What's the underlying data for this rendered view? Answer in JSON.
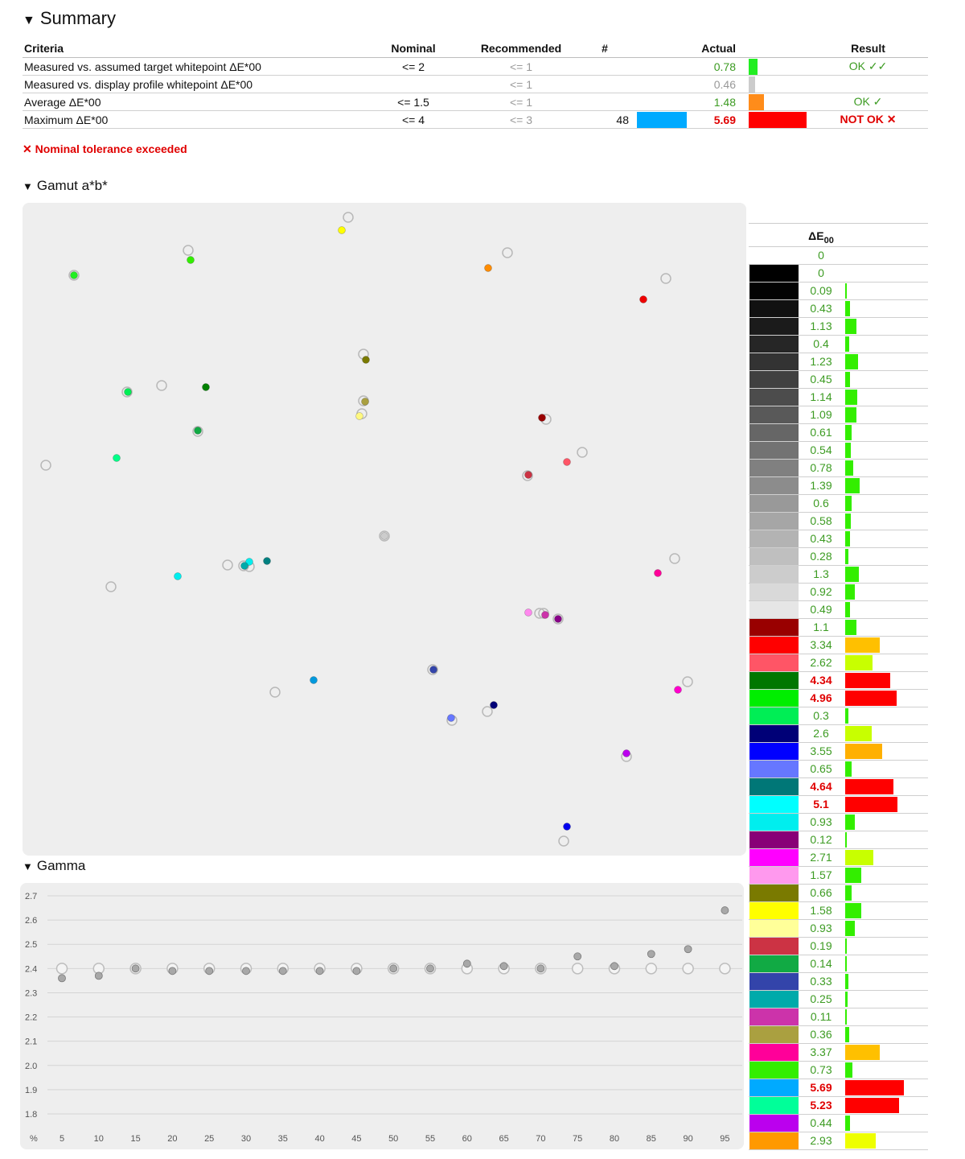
{
  "summary": {
    "title": "Summary",
    "headers": {
      "criteria": "Criteria",
      "nominal": "Nominal",
      "recommended": "Recommended",
      "count": "#",
      "actual": "Actual",
      "result": "Result"
    },
    "rows": [
      {
        "criteria": "Measured vs. assumed target whitepoint ΔE*00",
        "nominal": "<= 2",
        "recommended": "<= 1",
        "count": "",
        "actual": "0.78",
        "actual_color": "#3c9b22",
        "bar_color": "#22ee22",
        "bar_fraction": 0.15,
        "result": "OK ✓✓",
        "result_color": "#3c9b22",
        "swatch": ""
      },
      {
        "criteria": "Measured vs. display profile whitepoint ΔE*00",
        "nominal": "",
        "recommended": "<= 1",
        "count": "",
        "actual": "0.46",
        "actual_color": "#999999",
        "bar_color": "#cccccc",
        "bar_fraction": 0.11,
        "result": "",
        "result_color": "#3c9b22",
        "swatch": ""
      },
      {
        "criteria": "Average ΔE*00",
        "nominal": "<= 1.5",
        "recommended": "<= 1",
        "count": "",
        "actual": "1.48",
        "actual_color": "#3c9b22",
        "bar_color": "#ff8c1a",
        "bar_fraction": 0.27,
        "result": "OK ✓",
        "result_color": "#3c9b22",
        "swatch": ""
      },
      {
        "criteria": "Maximum ΔE*00",
        "nominal": "<= 4",
        "recommended": "<= 3",
        "count": "48",
        "actual": "5.69",
        "actual_color": "#e00000",
        "bar_color": "#ff0000",
        "bar_fraction": 1.0,
        "result": "NOT OK ✕",
        "result_color": "#e00000",
        "swatch": "#00aaff"
      }
    ],
    "warning": "✕ Nominal tolerance exceeded"
  },
  "gamut": {
    "title": "Gamut a*b*",
    "points": [
      {
        "color": "#ffff00",
        "ref": [
          433,
          270
        ],
        "meas": [
          425,
          286
        ]
      },
      {
        "color": "#33ee00",
        "ref": [
          234,
          311
        ],
        "meas": [
          237,
          323
        ]
      },
      {
        "color": "#22ee22",
        "ref": [
          92,
          342
        ],
        "meas": [
          92,
          342
        ]
      },
      {
        "color": "#ff8c00",
        "ref": [
          631,
          314
        ],
        "meas": [
          607,
          333
        ]
      },
      {
        "color": "#ee0000",
        "ref": [
          828,
          346
        ],
        "meas": [
          800,
          372
        ]
      },
      {
        "color": "#7a7a00",
        "ref": [
          452,
          440
        ],
        "meas": [
          455,
          447
        ]
      },
      {
        "color": "#00ee55",
        "ref": [
          158,
          487
        ],
        "meas": [
          159,
          487
        ]
      },
      {
        "color": "#008000",
        "ref": [
          201,
          479
        ],
        "meas": [
          256,
          481
        ]
      },
      {
        "color": "#aaa040",
        "ref": [
          452,
          498
        ],
        "meas": [
          454,
          499
        ]
      },
      {
        "color": "#fff880",
        "ref": [
          450,
          514
        ],
        "meas": [
          447,
          517
        ]
      },
      {
        "color": "#990000",
        "ref": [
          679,
          521
        ],
        "meas": [
          674,
          519
        ]
      },
      {
        "color": "#11aa44",
        "ref": [
          246,
          536
        ],
        "meas": [
          246,
          535
        ]
      },
      {
        "color": "#00ff88",
        "ref": [
          57,
          578
        ],
        "meas": [
          145,
          569
        ]
      },
      {
        "color": "#ff5566",
        "ref": [
          724,
          562
        ],
        "meas": [
          705,
          574
        ]
      },
      {
        "color": "#cc3344",
        "ref": [
          656,
          591
        ],
        "meas": [
          657,
          590
        ]
      },
      {
        "color": "#cccccc",
        "ref": [
          478,
          666
        ],
        "meas": [
          478,
          666
        ]
      },
      {
        "color": "#00eeee",
        "ref": [
          283,
          702
        ],
        "meas": [
          310,
          698
        ]
      },
      {
        "color": "#008080",
        "ref": [
          303,
          703
        ],
        "meas": [
          332,
          697
        ]
      },
      {
        "color": "#00aaaa",
        "ref": [
          310,
          704
        ],
        "meas": [
          304,
          703
        ]
      },
      {
        "color": "#00eeee",
        "ref": [
          138,
          729
        ],
        "meas": [
          221,
          716
        ]
      },
      {
        "color": "#ff0099",
        "ref": [
          839,
          694
        ],
        "meas": [
          818,
          712
        ]
      },
      {
        "color": "#ff88ee",
        "ref": [
          671,
          762
        ],
        "meas": [
          657,
          761
        ]
      },
      {
        "color": "#cc33aa",
        "ref": [
          676,
          762
        ],
        "meas": [
          678,
          764
        ]
      },
      {
        "color": "#880088",
        "ref": [
          694,
          769
        ],
        "meas": [
          694,
          769
        ]
      },
      {
        "color": "#3344aa",
        "ref": [
          538,
          832
        ],
        "meas": [
          539,
          832
        ]
      },
      {
        "color": "#0099dd",
        "ref": [
          342,
          860
        ],
        "meas": [
          390,
          845
        ]
      },
      {
        "color": "#ff00cc",
        "ref": [
          855,
          847
        ],
        "meas": [
          843,
          857
        ]
      },
      {
        "color": "#000077",
        "ref": [
          606,
          884
        ],
        "meas": [
          614,
          876
        ]
      },
      {
        "color": "#6677ff",
        "ref": [
          562,
          895
        ],
        "meas": [
          561,
          892
        ]
      },
      {
        "color": "#bb00ee",
        "ref": [
          779,
          940
        ],
        "meas": [
          779,
          936
        ]
      },
      {
        "color": "#0000ee",
        "ref": [
          701,
          1045
        ],
        "meas": [
          705,
          1027
        ]
      }
    ]
  },
  "gamma_title": "Gamma",
  "chart_data": {
    "type": "scatter",
    "title": "Gamma",
    "x": [
      5,
      10,
      15,
      20,
      25,
      30,
      35,
      40,
      45,
      50,
      55,
      60,
      65,
      70,
      75,
      80,
      85,
      90,
      95
    ],
    "x_unit_label": "%",
    "y_ticks": [
      "2.7",
      "2.6",
      "2.5",
      "2.4",
      "2.3",
      "2.2",
      "2.1",
      "2.0",
      "1.9",
      "1.8"
    ],
    "ylim": [
      1.8,
      2.7
    ],
    "series": [
      {
        "values": [
          2.4,
          2.4,
          2.4,
          2.4,
          2.4,
          2.4,
          2.4,
          2.4,
          2.4,
          2.4,
          2.4,
          2.4,
          2.4,
          2.4,
          2.4,
          2.4,
          2.4,
          2.4,
          2.4
        ]
      },
      {
        "values": [
          2.36,
          2.37,
          2.4,
          2.39,
          2.39,
          2.39,
          2.39,
          2.39,
          2.39,
          2.4,
          2.4,
          2.42,
          2.41,
          2.4,
          2.45,
          2.41,
          2.46,
          2.48,
          2.64
        ]
      }
    ],
    "grid": true
  },
  "delta_e": {
    "header": "ΔE",
    "header_sub": "00",
    "rows": [
      {
        "swatch": "#ffffff",
        "value": "0",
        "bar_color": "",
        "bar": 0
      },
      {
        "swatch": "#000000",
        "value": "0",
        "bar_color": "",
        "bar": 0
      },
      {
        "swatch": "#030303",
        "value": "0.09",
        "bar_color": "#33ee00",
        "bar": 0.09
      },
      {
        "swatch": "#111111",
        "value": "0.43",
        "bar_color": "#33ee00",
        "bar": 0.43
      },
      {
        "swatch": "#1b1b1b",
        "value": "1.13",
        "bar_color": "#33ee00",
        "bar": 1.13
      },
      {
        "swatch": "#262626",
        "value": "0.4",
        "bar_color": "#33ee00",
        "bar": 0.4
      },
      {
        "swatch": "#333333",
        "value": "1.23",
        "bar_color": "#33ee00",
        "bar": 1.23
      },
      {
        "swatch": "#404040",
        "value": "0.45",
        "bar_color": "#33ee00",
        "bar": 0.45
      },
      {
        "swatch": "#4c4c4c",
        "value": "1.14",
        "bar_color": "#33ee00",
        "bar": 1.14
      },
      {
        "swatch": "#595959",
        "value": "1.09",
        "bar_color": "#33ee00",
        "bar": 1.09
      },
      {
        "swatch": "#666666",
        "value": "0.61",
        "bar_color": "#33ee00",
        "bar": 0.61
      },
      {
        "swatch": "#737373",
        "value": "0.54",
        "bar_color": "#33ee00",
        "bar": 0.54
      },
      {
        "swatch": "#808080",
        "value": "0.78",
        "bar_color": "#33ee00",
        "bar": 0.78
      },
      {
        "swatch": "#8c8c8c",
        "value": "1.39",
        "bar_color": "#33ee00",
        "bar": 1.39
      },
      {
        "swatch": "#999999",
        "value": "0.6",
        "bar_color": "#33ee00",
        "bar": 0.6
      },
      {
        "swatch": "#a6a6a6",
        "value": "0.58",
        "bar_color": "#33ee00",
        "bar": 0.58
      },
      {
        "swatch": "#b3b3b3",
        "value": "0.43",
        "bar_color": "#33ee00",
        "bar": 0.43
      },
      {
        "swatch": "#bfbfbf",
        "value": "0.28",
        "bar_color": "#33ee00",
        "bar": 0.28
      },
      {
        "swatch": "#cccccc",
        "value": "1.3",
        "bar_color": "#33ee00",
        "bar": 1.3
      },
      {
        "swatch": "#d9d9d9",
        "value": "0.92",
        "bar_color": "#33ee00",
        "bar": 0.92
      },
      {
        "swatch": "#e6e6e6",
        "value": "0.49",
        "bar_color": "#33ee00",
        "bar": 0.49
      },
      {
        "swatch": "#990000",
        "value": "1.1",
        "bar_color": "#33ee00",
        "bar": 1.1
      },
      {
        "swatch": "#ff0000",
        "value": "3.34",
        "bar_color": "#ffc000",
        "bar": 3.34
      },
      {
        "swatch": "#ff5566",
        "value": "2.62",
        "bar_color": "#c8ff00",
        "bar": 2.62
      },
      {
        "swatch": "#007700",
        "value": "4.34",
        "bar_color": "#ff0000",
        "bar": 4.34,
        "alert": true
      },
      {
        "swatch": "#00ee00",
        "value": "4.96",
        "bar_color": "#ff0000",
        "bar": 4.96,
        "alert": true
      },
      {
        "swatch": "#00ee55",
        "value": "0.3",
        "bar_color": "#33ee00",
        "bar": 0.3
      },
      {
        "swatch": "#000077",
        "value": "2.6",
        "bar_color": "#c8ff00",
        "bar": 2.6
      },
      {
        "swatch": "#0000ff",
        "value": "3.55",
        "bar_color": "#ffb000",
        "bar": 3.55
      },
      {
        "swatch": "#6677ff",
        "value": "0.65",
        "bar_color": "#33ee00",
        "bar": 0.65
      },
      {
        "swatch": "#007777",
        "value": "4.64",
        "bar_color": "#ff0000",
        "bar": 4.64,
        "alert": true
      },
      {
        "swatch": "#00ffff",
        "value": "5.1",
        "bar_color": "#ff0000",
        "bar": 5.1,
        "alert": true
      },
      {
        "swatch": "#00eeee",
        "value": "0.93",
        "bar_color": "#33ee00",
        "bar": 0.93
      },
      {
        "swatch": "#880077",
        "value": "0.12",
        "bar_color": "#33ee00",
        "bar": 0.12
      },
      {
        "swatch": "#ff00ff",
        "value": "2.71",
        "bar_color": "#c8ff00",
        "bar": 2.71
      },
      {
        "swatch": "#ff99ee",
        "value": "1.57",
        "bar_color": "#33ee00",
        "bar": 1.57
      },
      {
        "swatch": "#7a7a00",
        "value": "0.66",
        "bar_color": "#33ee00",
        "bar": 0.66
      },
      {
        "swatch": "#ffff00",
        "value": "1.58",
        "bar_color": "#33ee00",
        "bar": 1.58
      },
      {
        "swatch": "#ffff99",
        "value": "0.93",
        "bar_color": "#33ee00",
        "bar": 0.93
      },
      {
        "swatch": "#cc3344",
        "value": "0.19",
        "bar_color": "#33ee00",
        "bar": 0.19
      },
      {
        "swatch": "#11aa44",
        "value": "0.14",
        "bar_color": "#33ee00",
        "bar": 0.14
      },
      {
        "swatch": "#3344aa",
        "value": "0.33",
        "bar_color": "#33ee00",
        "bar": 0.33
      },
      {
        "swatch": "#00aaaa",
        "value": "0.25",
        "bar_color": "#33ee00",
        "bar": 0.25
      },
      {
        "swatch": "#cc33aa",
        "value": "0.11",
        "bar_color": "#33ee00",
        "bar": 0.11
      },
      {
        "swatch": "#aaa040",
        "value": "0.36",
        "bar_color": "#33ee00",
        "bar": 0.36
      },
      {
        "swatch": "#ff0099",
        "value": "3.37",
        "bar_color": "#ffc000",
        "bar": 3.37
      },
      {
        "swatch": "#33ee00",
        "value": "0.73",
        "bar_color": "#33ee00",
        "bar": 0.73
      },
      {
        "swatch": "#00aaff",
        "value": "5.69",
        "bar_color": "#ff0000",
        "bar": 5.69,
        "alert": true
      },
      {
        "swatch": "#00ff99",
        "value": "5.23",
        "bar_color": "#ff0000",
        "bar": 5.23,
        "alert": true
      },
      {
        "swatch": "#bb00ee",
        "value": "0.44",
        "bar_color": "#33ee00",
        "bar": 0.44
      },
      {
        "swatch": "#ff9900",
        "value": "2.93",
        "bar_color": "#eeff00",
        "bar": 2.93
      }
    ]
  }
}
